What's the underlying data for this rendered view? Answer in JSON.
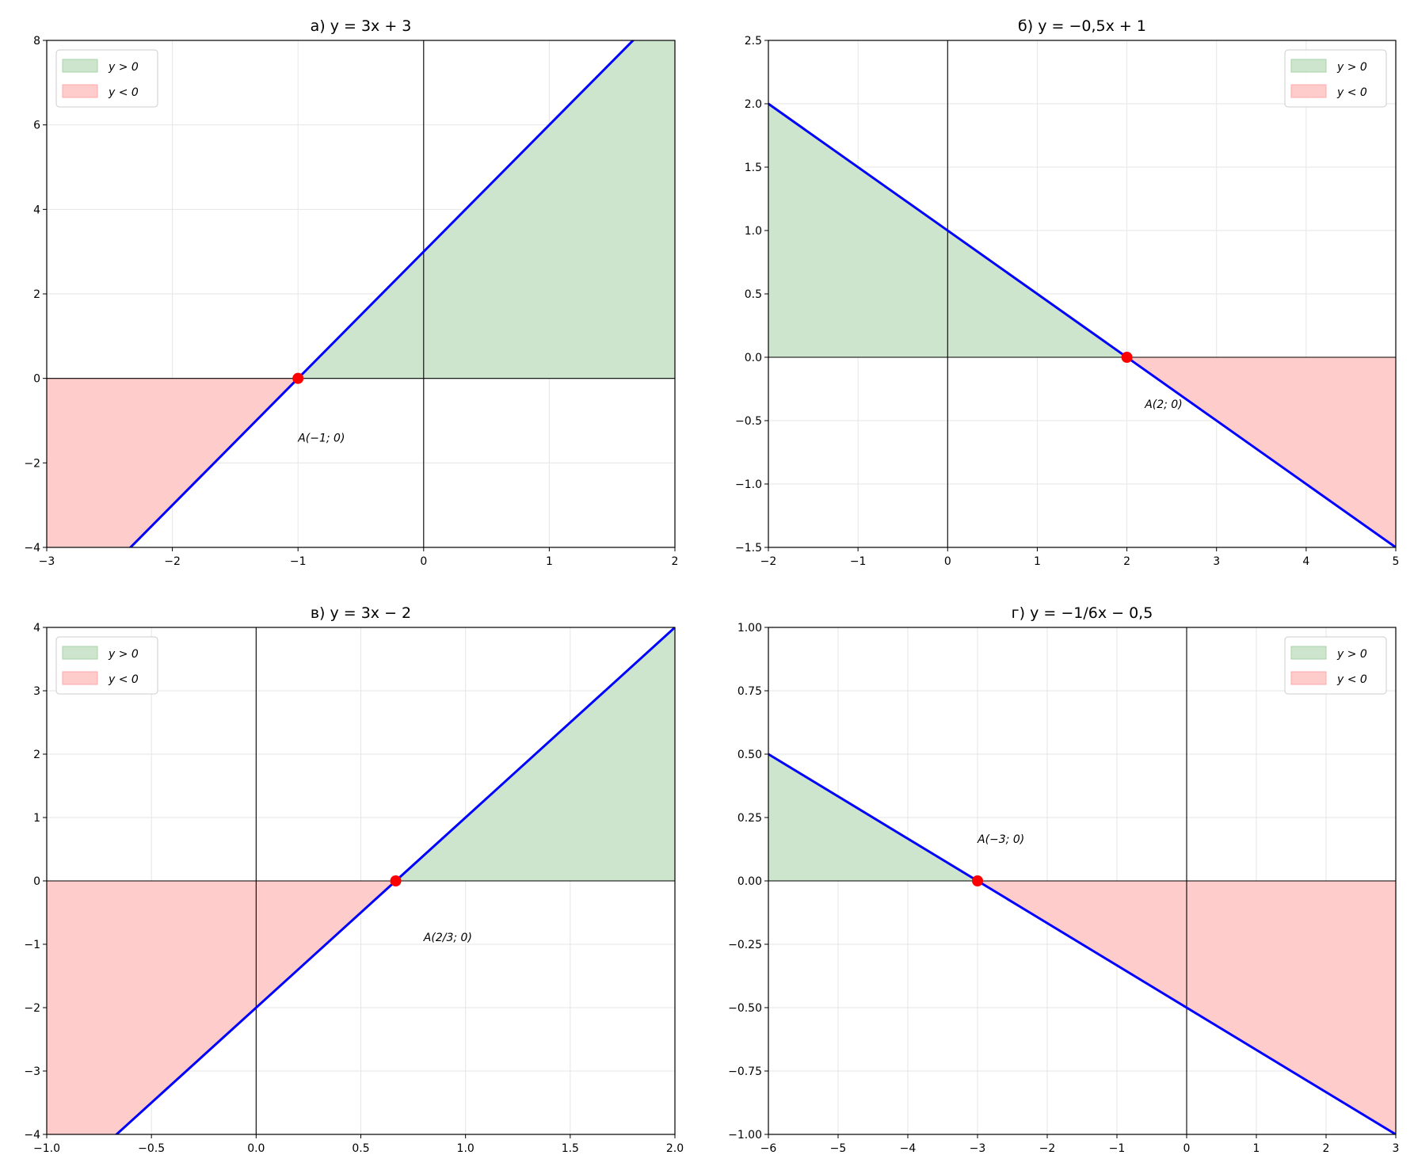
{
  "chart_data": [
    {
      "type": "line",
      "title": "а) y = 3x + 3",
      "slope": 3,
      "intercept": 3,
      "xlim": [
        -3,
        2
      ],
      "ylim": [
        -4,
        8
      ],
      "xticks": [
        -3,
        -2,
        -1,
        0,
        1,
        2
      ],
      "xtick_labels": [
        "−3",
        "−2",
        "−1",
        "0",
        "1",
        "2"
      ],
      "yticks": [
        -4,
        -2,
        0,
        2,
        4,
        6,
        8
      ],
      "ytick_labels": [
        "−4",
        "−2",
        "0",
        "2",
        "4",
        "6",
        "8"
      ],
      "root": [
        -1,
        0
      ],
      "annotation": {
        "text": "A(−1; 0)",
        "at": [
          -1,
          -1.5
        ]
      },
      "legend": {
        "placement": "upper-left",
        "entries": [
          "y > 0",
          "y < 0"
        ]
      },
      "grid": true
    },
    {
      "type": "line",
      "title": "б) y = −0,5x + 1",
      "slope": -0.5,
      "intercept": 1,
      "xlim": [
        -2,
        5
      ],
      "ylim": [
        -1.5,
        2.5
      ],
      "xticks": [
        -2,
        -1,
        0,
        1,
        2,
        3,
        4,
        5
      ],
      "xtick_labels": [
        "−2",
        "−1",
        "0",
        "1",
        "2",
        "3",
        "4",
        "5"
      ],
      "yticks": [
        -1.5,
        -1,
        -0.5,
        0,
        0.5,
        1,
        1.5,
        2,
        2.5
      ],
      "ytick_labels": [
        "−1.5",
        "−1.0",
        "−0.5",
        "0.0",
        "0.5",
        "1.0",
        "1.5",
        "2.0",
        "2.5"
      ],
      "root": [
        2,
        0
      ],
      "annotation": {
        "text": "A(2; 0)",
        "at": [
          2.2,
          -0.4
        ]
      },
      "legend": {
        "placement": "upper-right",
        "entries": [
          "y > 0",
          "y < 0"
        ]
      },
      "grid": true
    },
    {
      "type": "line",
      "title": "в) y = 3x − 2",
      "slope": 3,
      "intercept": -2,
      "xlim": [
        -1,
        2
      ],
      "ylim": [
        -4,
        4
      ],
      "xticks": [
        -1,
        -0.5,
        0,
        0.5,
        1,
        1.5,
        2
      ],
      "xtick_labels": [
        "−1.0",
        "−0.5",
        "0.0",
        "0.5",
        "1.0",
        "1.5",
        "2.0"
      ],
      "yticks": [
        -4,
        -3,
        -2,
        -1,
        0,
        1,
        2,
        3,
        4
      ],
      "ytick_labels": [
        "−4",
        "−3",
        "−2",
        "−1",
        "0",
        "1",
        "2",
        "3",
        "4"
      ],
      "root": [
        0.6667,
        0
      ],
      "annotation": {
        "text": "A(2/3; 0)",
        "at": [
          0.8,
          -0.95
        ]
      },
      "legend": {
        "placement": "upper-left",
        "entries": [
          "y > 0",
          "y < 0"
        ]
      },
      "grid": true
    },
    {
      "type": "line",
      "title": "г) y = −1/6x − 0,5",
      "slope": -0.16667,
      "intercept": -0.5,
      "xlim": [
        -6,
        3
      ],
      "ylim": [
        -1,
        1
      ],
      "xticks": [
        -6,
        -5,
        -4,
        -3,
        -2,
        -1,
        0,
        1,
        2,
        3
      ],
      "xtick_labels": [
        "−6",
        "−5",
        "−4",
        "−3",
        "−2",
        "−1",
        "0",
        "1",
        "2",
        "3"
      ],
      "yticks": [
        -1,
        -0.75,
        -0.5,
        -0.25,
        0,
        0.25,
        0.5,
        0.75,
        1
      ],
      "ytick_labels": [
        "−1.00",
        "−0.75",
        "−0.50",
        "−0.25",
        "0.00",
        "0.25",
        "0.50",
        "0.75",
        "1.00"
      ],
      "root": [
        -3,
        0
      ],
      "annotation": {
        "text": "A(−3; 0)",
        "at": [
          -3,
          0.15
        ]
      },
      "legend": {
        "placement": "upper-right",
        "entries": [
          "y > 0",
          "y < 0"
        ]
      },
      "grid": true
    }
  ],
  "colors": {
    "line": "#0000ff",
    "positive": "#cde5cd",
    "positive_edge": "#a8d4a8",
    "negative": "#ffcccc",
    "negative_edge": "#ffaaaa",
    "point": "#ff0000",
    "grid": "#e6e6e6"
  }
}
